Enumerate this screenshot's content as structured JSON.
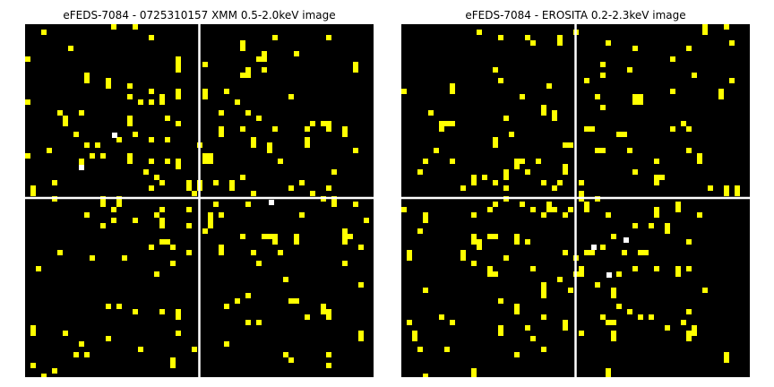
{
  "panels": [
    {
      "title": "eFEDS-7084 - 0725310157 XMM 0.5-2.0keV image",
      "background": "#000000",
      "count_color": "#ffff00",
      "bright_color": "#ffffff",
      "crosshair": {
        "color": "#ffffff"
      },
      "seed": 7084
    },
    {
      "title": "eFEDS-7084 -  EROSITA 0.2-2.3keV image",
      "background": "#000000",
      "count_color": "#ffff00",
      "bright_color": "#ffffff",
      "crosshair": {
        "color": "#ffffff"
      },
      "seed": 2023
    }
  ]
}
